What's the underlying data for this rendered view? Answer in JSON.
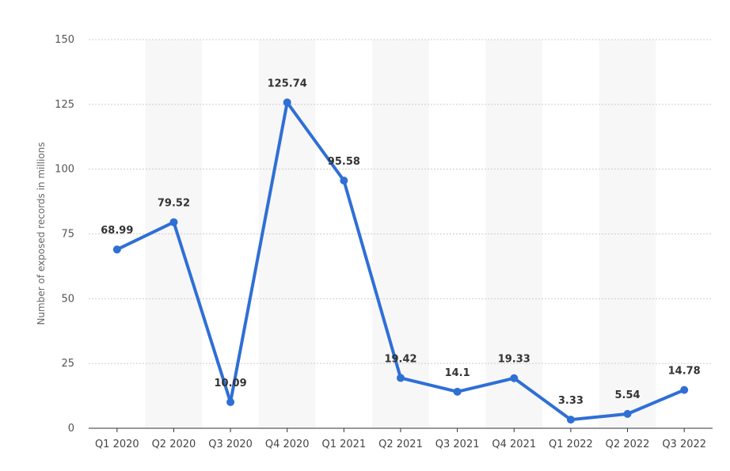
{
  "chart_data": {
    "type": "line",
    "categories": [
      "Q1 2020",
      "Q2 2020",
      "Q3 2020",
      "Q4 2020",
      "Q1 2021",
      "Q2 2021",
      "Q3 2021",
      "Q4 2021",
      "Q1 2022",
      "Q2 2022",
      "Q3 2022"
    ],
    "series": [
      {
        "values": [
          68.99,
          79.52,
          10.09,
          125.74,
          95.58,
          19.42,
          14.1,
          19.33,
          3.33,
          5.54,
          14.78
        ],
        "labels": [
          "68.99",
          "79.52",
          "10.09",
          "125.74",
          "95.58",
          "19.42",
          "14.1",
          "19.33",
          "3.33",
          "5.54",
          "14.78"
        ]
      }
    ],
    "title": "",
    "xlabel": "",
    "ylabel": "Number of exposed records in millions",
    "ylim": [
      0,
      150
    ],
    "yticks": [
      0,
      25,
      50,
      75,
      100,
      125,
      150
    ],
    "ytick_labels": [
      "0",
      "25",
      "50",
      "75",
      "100",
      "125",
      "150"
    ],
    "grid": "horizontal dotted",
    "alternate_column_shading": true,
    "legend": "none",
    "colors": {
      "line": "#2f6fd6",
      "band": "#f7f7f7",
      "grid": "#cccccc",
      "axis": "#333333"
    }
  }
}
